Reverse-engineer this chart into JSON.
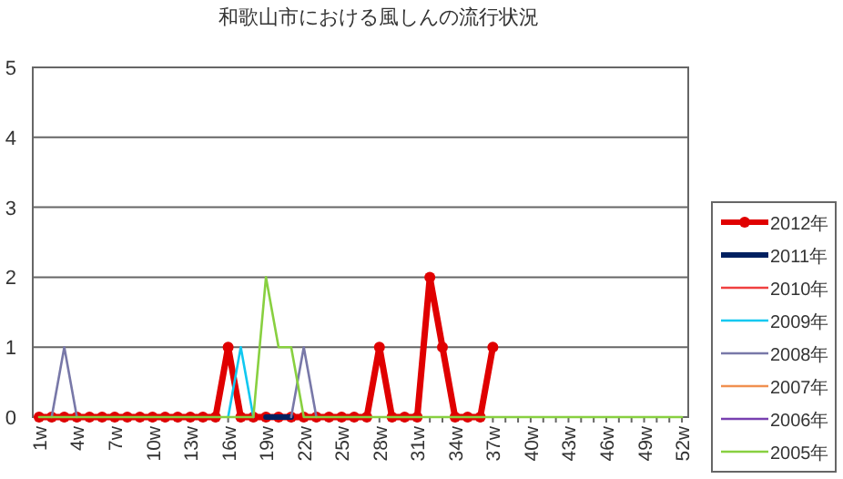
{
  "chart_data": {
    "type": "line",
    "title": "和歌山市における風しんの流行状況",
    "categories": [
      "1w",
      null,
      null,
      "4w",
      null,
      null,
      "7w",
      null,
      null,
      "10w",
      null,
      null,
      "13w",
      null,
      null,
      "16w",
      null,
      null,
      "19w",
      null,
      null,
      "22w",
      null,
      null,
      "25w",
      null,
      null,
      "28w",
      null,
      null,
      "31w",
      null,
      null,
      "34w",
      null,
      null,
      "37w",
      null,
      null,
      "40w",
      null,
      null,
      "43w",
      null,
      null,
      "46w",
      null,
      null,
      "49w",
      null,
      null,
      "52w"
    ],
    "ylim": [
      0,
      5
    ],
    "yticks": [
      0,
      1,
      2,
      3,
      4,
      5
    ],
    "grid": "y",
    "legend": "right",
    "series": [
      {
        "name": "2012年",
        "color": "#e00000",
        "marker": "circle",
        "values": [
          0,
          0,
          0,
          0,
          0,
          0,
          0,
          0,
          0,
          0,
          0,
          0,
          0,
          0,
          0,
          1,
          0,
          0,
          0,
          0,
          0,
          0,
          0,
          0,
          0,
          0,
          0,
          1,
          0,
          0,
          0,
          2,
          1,
          0,
          0,
          0,
          1,
          null,
          null,
          null,
          null,
          null,
          null,
          null,
          null,
          null,
          null,
          null,
          null,
          null,
          null,
          null
        ]
      },
      {
        "name": "2011年",
        "color": "#002060",
        "marker": "none",
        "values": [
          null,
          null,
          null,
          null,
          null,
          null,
          null,
          null,
          null,
          null,
          null,
          null,
          null,
          null,
          null,
          null,
          null,
          null,
          0,
          0,
          0,
          null,
          null,
          null,
          null,
          null,
          null,
          null,
          null,
          null,
          null,
          null,
          null,
          null,
          null,
          null,
          null,
          null,
          null,
          null,
          null,
          null,
          null,
          null,
          null,
          null,
          null,
          null,
          null,
          null,
          null,
          null
        ]
      },
      {
        "name": "2010年",
        "color": "#f04040",
        "marker": "none",
        "values": [
          null,
          null,
          null,
          null,
          null,
          null,
          null,
          null,
          null,
          null,
          null,
          null,
          null,
          null,
          null,
          null,
          null,
          null,
          null,
          null,
          null,
          null,
          null,
          null,
          null,
          null,
          null,
          null,
          null,
          null,
          null,
          null,
          null,
          null,
          null,
          null,
          null,
          null,
          null,
          null,
          null,
          null,
          null,
          null,
          null,
          null,
          null,
          null,
          null,
          null,
          null,
          null
        ]
      },
      {
        "name": "2009年",
        "color": "#10c8f0",
        "marker": "none",
        "values": [
          null,
          null,
          null,
          null,
          null,
          null,
          null,
          null,
          null,
          null,
          null,
          null,
          null,
          null,
          null,
          0,
          1,
          0,
          null,
          null,
          null,
          null,
          null,
          null,
          null,
          null,
          null,
          null,
          null,
          null,
          null,
          null,
          null,
          null,
          null,
          null,
          null,
          null,
          null,
          null,
          null,
          null,
          null,
          null,
          null,
          null,
          null,
          null,
          null,
          null,
          null,
          null
        ]
      },
      {
        "name": "2008年",
        "color": "#7878a8",
        "marker": "none",
        "values": [
          null,
          0,
          1,
          0,
          null,
          null,
          null,
          null,
          null,
          null,
          null,
          null,
          null,
          null,
          null,
          null,
          null,
          null,
          null,
          null,
          0,
          1,
          0,
          null,
          null,
          null,
          null,
          null,
          null,
          null,
          null,
          null,
          null,
          null,
          null,
          null,
          null,
          null,
          null,
          null,
          null,
          null,
          null,
          null,
          null,
          null,
          null,
          null,
          null,
          null,
          null,
          null
        ]
      },
      {
        "name": "2007年",
        "color": "#f09050",
        "marker": "none",
        "values": [
          null,
          null,
          null,
          null,
          null,
          null,
          null,
          null,
          null,
          null,
          null,
          null,
          null,
          null,
          null,
          null,
          null,
          null,
          null,
          null,
          null,
          null,
          null,
          null,
          null,
          null,
          null,
          null,
          null,
          null,
          null,
          null,
          null,
          null,
          null,
          null,
          null,
          null,
          null,
          null,
          null,
          null,
          null,
          null,
          null,
          null,
          null,
          null,
          null,
          null,
          null,
          null
        ]
      },
      {
        "name": "2006年",
        "color": "#7840b0",
        "marker": "none",
        "values": [
          null,
          null,
          null,
          null,
          null,
          null,
          null,
          null,
          null,
          null,
          null,
          null,
          null,
          null,
          null,
          null,
          null,
          null,
          null,
          null,
          null,
          null,
          null,
          null,
          null,
          null,
          null,
          null,
          null,
          null,
          null,
          null,
          null,
          null,
          null,
          null,
          null,
          null,
          null,
          null,
          null,
          null,
          null,
          null,
          null,
          null,
          null,
          null,
          null,
          null,
          null,
          null
        ]
      },
      {
        "name": "2005年",
        "color": "#88d040",
        "marker": "none",
        "values": [
          0,
          0,
          0,
          0,
          0,
          0,
          0,
          0,
          0,
          0,
          0,
          0,
          0,
          0,
          0,
          0,
          0,
          0,
          2,
          1,
          1,
          0,
          0,
          0,
          0,
          0,
          0,
          0,
          0,
          0,
          0,
          0,
          0,
          0,
          0,
          0,
          0,
          0,
          0,
          0,
          0,
          0,
          0,
          0,
          0,
          0,
          0,
          0,
          0,
          0,
          0,
          0
        ]
      }
    ]
  }
}
